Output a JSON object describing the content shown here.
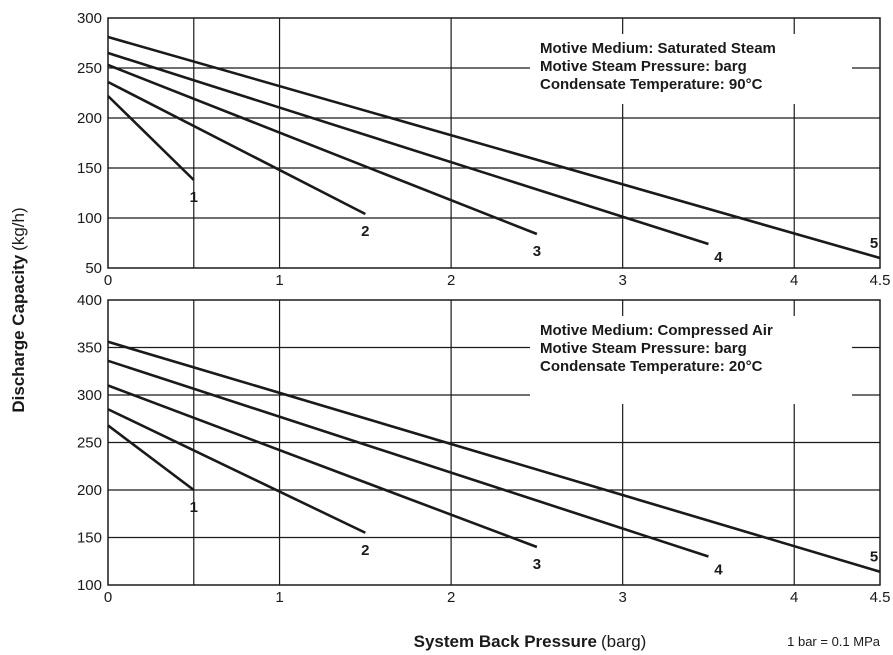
{
  "axes": {
    "ylabel_bold": "Discharge Capacity",
    "ylabel_unit": "(kg/h)",
    "xlabel_bold": "System Back Pressure",
    "xlabel_unit": "(barg)"
  },
  "footnote": "1 bar = 0.1 MPa",
  "colors": {
    "line": "#1a1a1a",
    "grid": "#1a1a1a",
    "background": "#ffffff"
  },
  "chart_data": [
    {
      "type": "line",
      "annotation": [
        "Motive Medium: Saturated Steam",
        "Motive Steam Pressure: barg",
        "Condensate Temperature: 90°C"
      ],
      "xlim": [
        0,
        4.5
      ],
      "ylim": [
        50,
        300
      ],
      "xticks": [
        0,
        1,
        2,
        3,
        4,
        4.5
      ],
      "xtick_labels": [
        "0",
        "1",
        "2",
        "3",
        "4",
        "4.5"
      ],
      "yticks": [
        50,
        100,
        150,
        200,
        250,
        300
      ],
      "grid": true,
      "series": [
        {
          "name": "1",
          "x": [
            0,
            0.5
          ],
          "y": [
            222,
            138
          ]
        },
        {
          "name": "2",
          "x": [
            0,
            1.5
          ],
          "y": [
            236,
            104
          ]
        },
        {
          "name": "3",
          "x": [
            0,
            2.5
          ],
          "y": [
            253,
            84
          ]
        },
        {
          "name": "4",
          "x": [
            0,
            3.5
          ],
          "y": [
            265,
            74
          ]
        },
        {
          "name": "5",
          "x": [
            0,
            4.5
          ],
          "y": [
            281,
            60
          ]
        }
      ]
    },
    {
      "type": "line",
      "annotation": [
        "Motive Medium: Compressed Air",
        "Motive Steam Pressure: barg",
        "Condensate Temperature: 20°C"
      ],
      "xlim": [
        0,
        4.5
      ],
      "ylim": [
        100,
        400
      ],
      "xticks": [
        0,
        1,
        2,
        3,
        4,
        4.5
      ],
      "xtick_labels": [
        "0",
        "1",
        "2",
        "3",
        "4",
        "4.5"
      ],
      "yticks": [
        100,
        150,
        200,
        250,
        300,
        350,
        400
      ],
      "grid": true,
      "series": [
        {
          "name": "1",
          "x": [
            0,
            0.5
          ],
          "y": [
            268,
            200
          ]
        },
        {
          "name": "2",
          "x": [
            0,
            1.5
          ],
          "y": [
            285,
            155
          ]
        },
        {
          "name": "3",
          "x": [
            0,
            2.5
          ],
          "y": [
            310,
            140
          ]
        },
        {
          "name": "4",
          "x": [
            0,
            3.5
          ],
          "y": [
            336,
            130
          ]
        },
        {
          "name": "5",
          "x": [
            0,
            4.5
          ],
          "y": [
            356,
            114
          ]
        }
      ]
    }
  ]
}
